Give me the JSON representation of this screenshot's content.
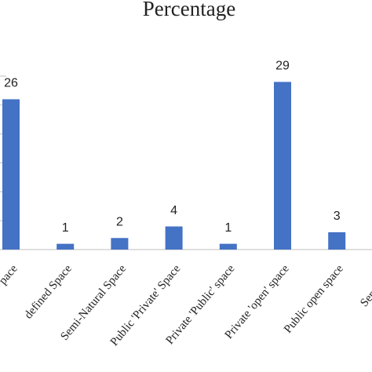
{
  "chart_data": {
    "type": "bar",
    "title": "Percentage",
    "categories": [
      "pace",
      "defined Space",
      "Semi-Natural Space",
      "Public 'Private' Space",
      "Private 'Public' space",
      "Private 'open' space",
      "Public open space",
      "Service Sp"
    ],
    "values": [
      26,
      1,
      2,
      4,
      1,
      29,
      3,
      null
    ],
    "color": "#4472c4",
    "ylim": [
      0,
      30
    ],
    "yticks": [
      0,
      5,
      10,
      15,
      20,
      25,
      30
    ],
    "grid": true
  }
}
